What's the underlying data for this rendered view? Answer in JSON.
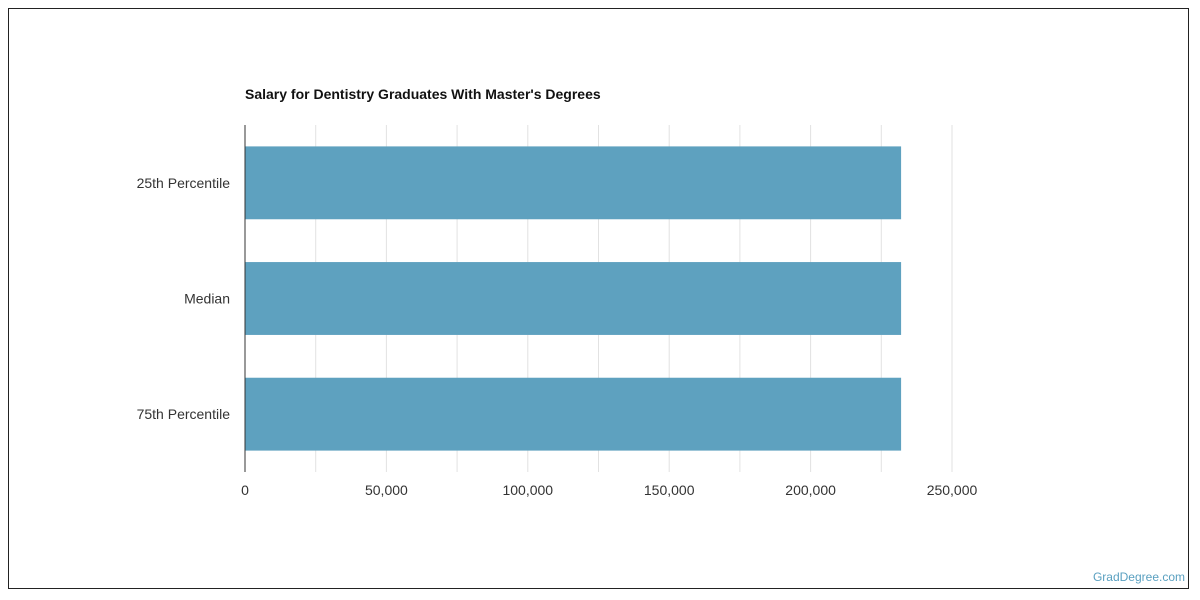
{
  "chart_data": {
    "type": "bar",
    "orientation": "horizontal",
    "title": "Salary for Dentistry Graduates With Master's Degrees",
    "xlabel": "",
    "ylabel": "",
    "categories": [
      "25th Percentile",
      "Median",
      "75th Percentile"
    ],
    "values": [
      232000,
      232000,
      232000
    ],
    "xlim": [
      0,
      250000
    ],
    "x_ticks": [
      0,
      50000,
      100000,
      150000,
      200000,
      250000
    ],
    "x_tick_labels": [
      "0",
      "50,000",
      "100,000",
      "150,000",
      "200,000",
      "250,000"
    ],
    "grid": true,
    "bar_color": "#5ea1bf"
  },
  "watermark": "GradDegree.com"
}
